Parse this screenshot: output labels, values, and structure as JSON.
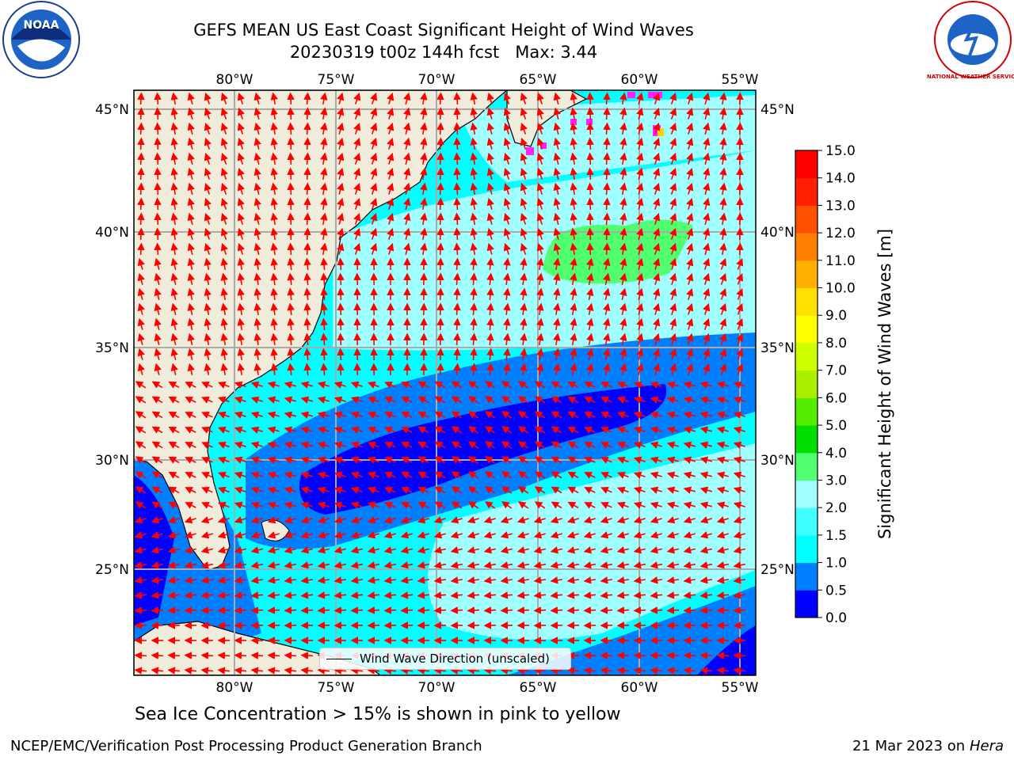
{
  "header": {
    "title_line1": "GEFS MEAN US East Coast Significant Height of Wind Waves",
    "title_line2": "20230319 t00z 144h fcst   Max: 3.44"
  },
  "logos": {
    "left": {
      "name": "noaa-logo",
      "text": "NOAA"
    },
    "right": {
      "name": "national-weather-service-logo",
      "text": "NATIONAL WEATHER SERVICE"
    }
  },
  "map": {
    "lon_ticks": [
      "80°W",
      "75°W",
      "70°W",
      "65°W",
      "60°W",
      "55°W"
    ],
    "lat_ticks": [
      "45°N",
      "40°N",
      "35°N",
      "30°N",
      "25°N"
    ],
    "legend_text": "Wind Wave Direction (unscaled)",
    "arrow_color": "#ff0000",
    "land_color": "#efecdc"
  },
  "colorbar": {
    "label": "Significant Height of Wind Waves [m]",
    "ticks": [
      "0.0",
      "0.5",
      "1.0",
      "1.5",
      "2.0",
      "3.0",
      "4.0",
      "5.0",
      "6.0",
      "7.0",
      "8.0",
      "9.0",
      "10.0",
      "11.0",
      "12.0",
      "13.0",
      "14.0",
      "15.0"
    ],
    "colors": [
      "#0000ff",
      "#0080ff",
      "#00ffff",
      "#40ffff",
      "#a0ffff",
      "#50ff70",
      "#00dd00",
      "#55ee00",
      "#aaee00",
      "#ccff00",
      "#ffff00",
      "#ffe000",
      "#ffb000",
      "#ff8000",
      "#ff5000",
      "#ff2000",
      "#ff0000"
    ]
  },
  "note": "Sea Ice Concentration > 15% is shown in pink to yellow",
  "footer": {
    "left": "NCEP/EMC/Verification Post Processing Product Generation Branch",
    "right_date": "21 Mar 2023 on",
    "right_host": "Hera"
  }
}
